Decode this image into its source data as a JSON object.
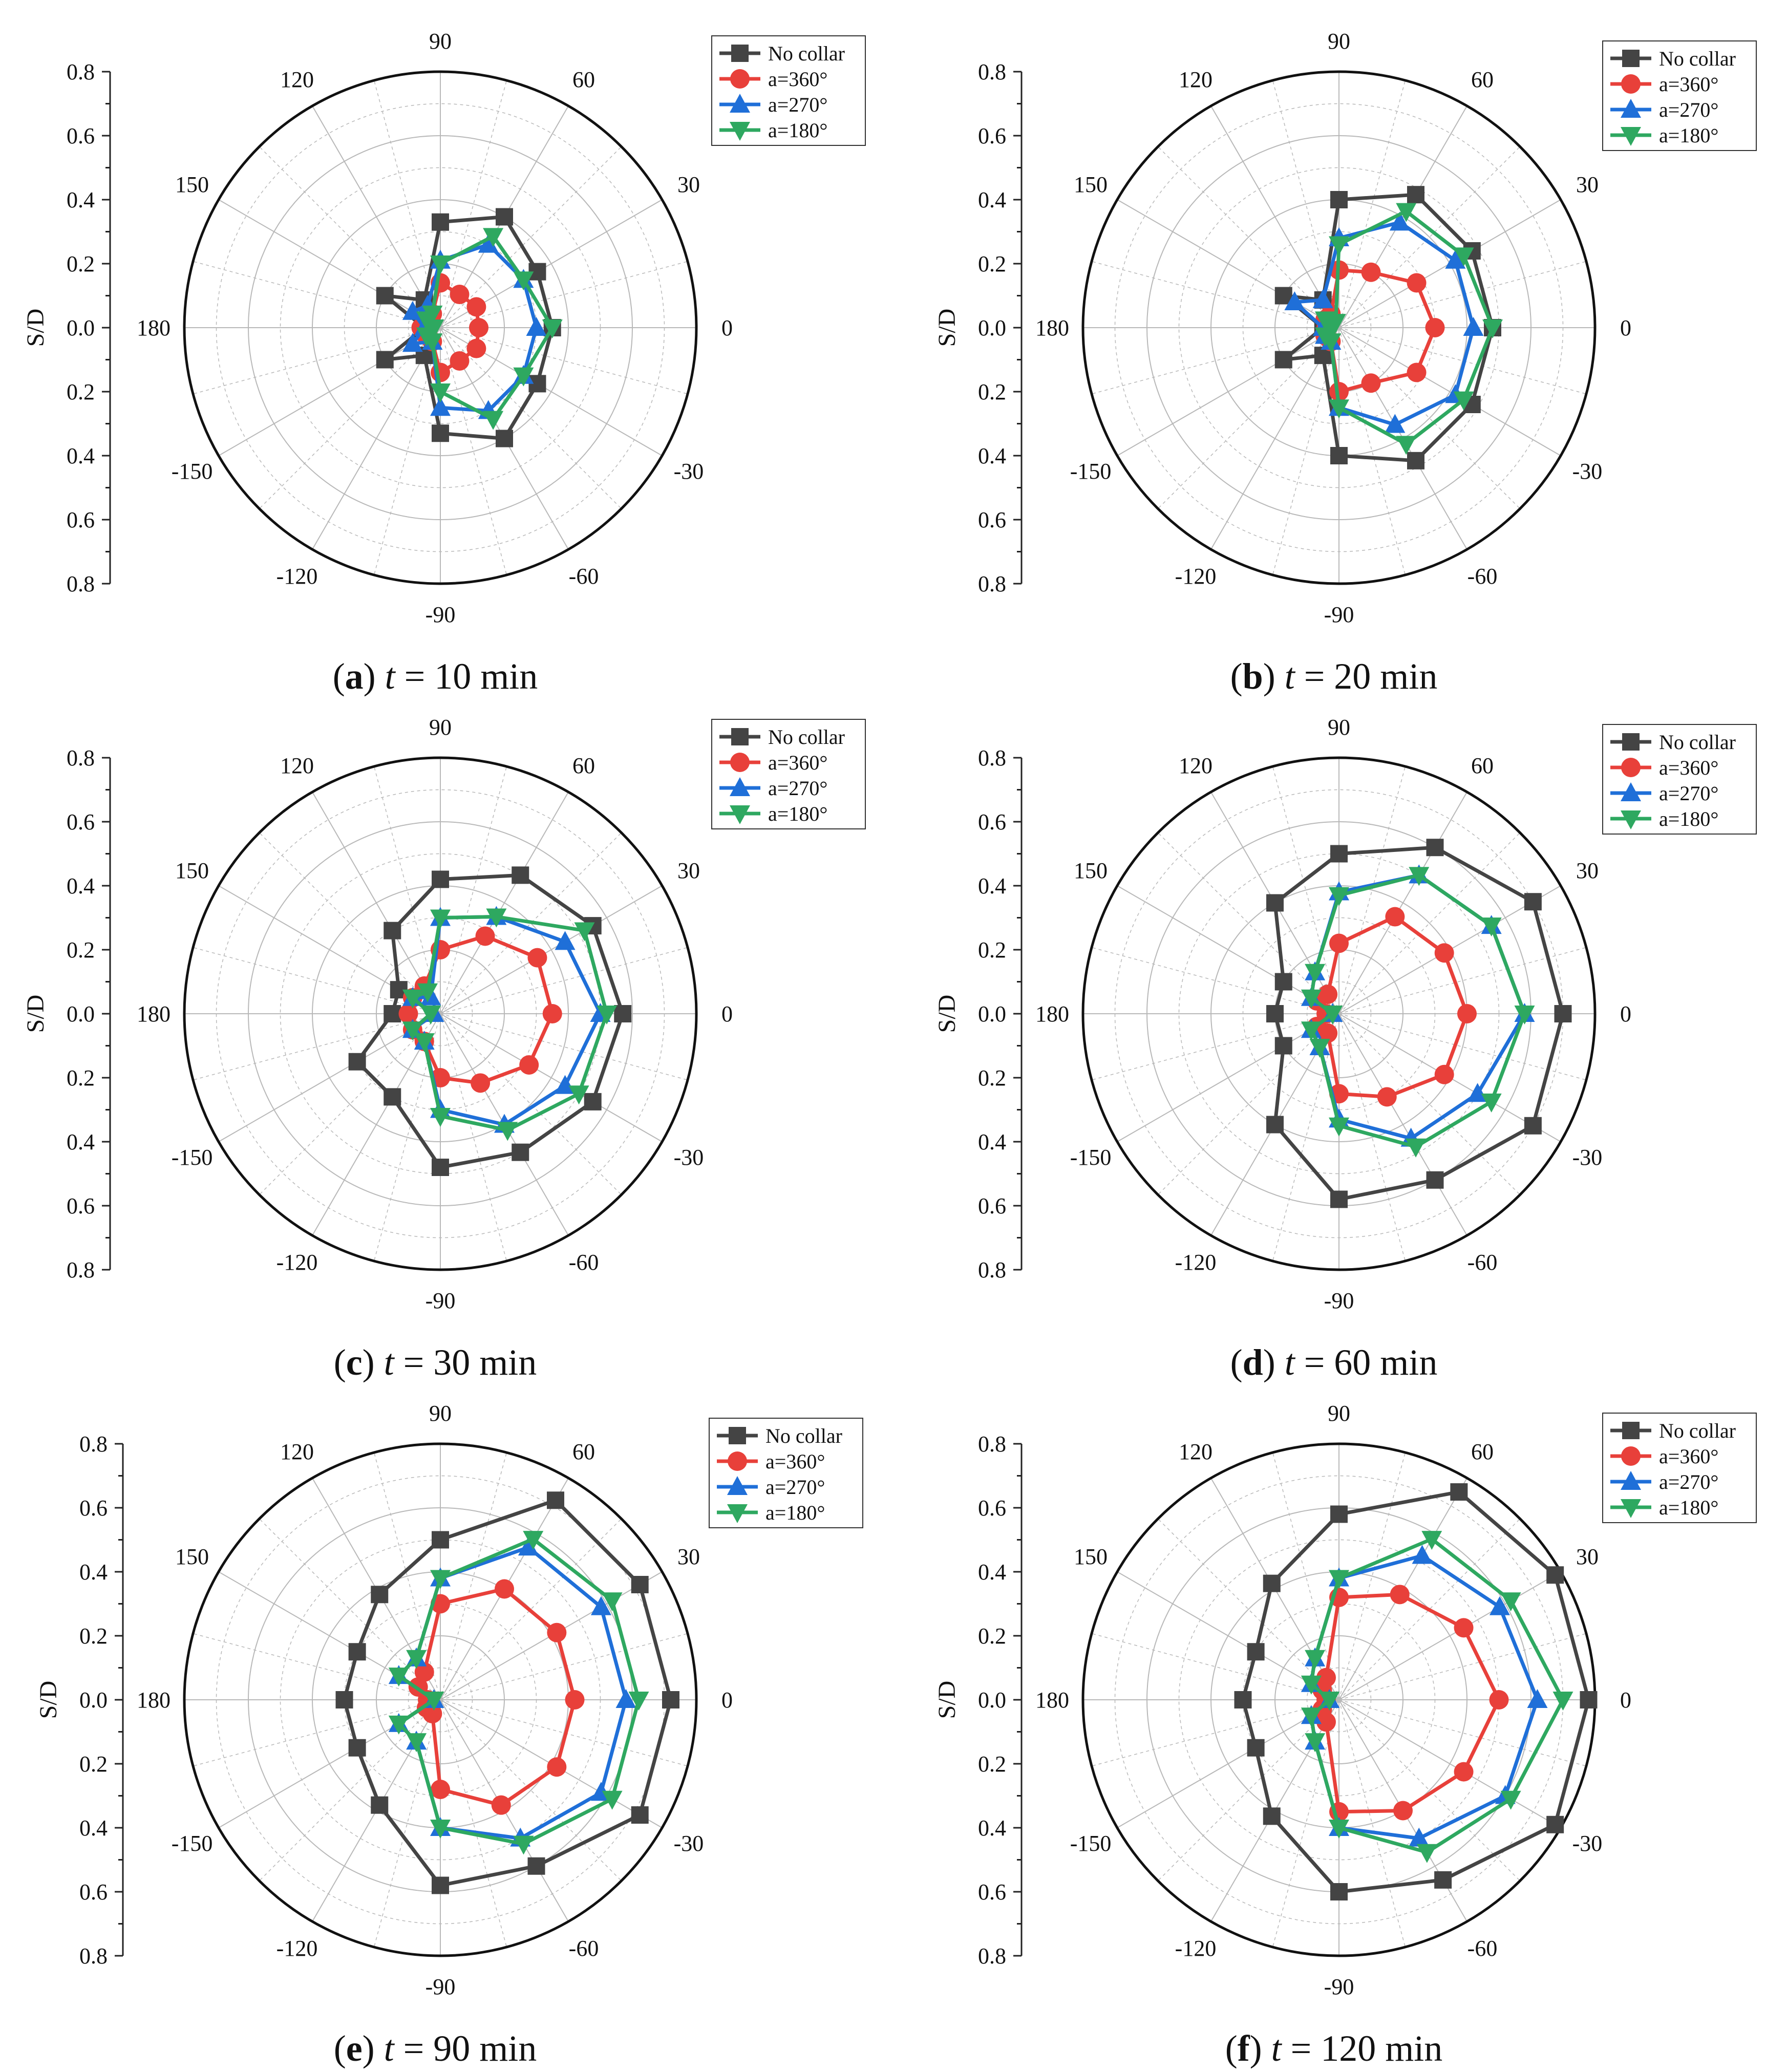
{
  "figure": {
    "y_axis_title": "S/D",
    "y_tick_labels": [
      "0.8",
      "0.6",
      "0.4",
      "0.2",
      "0.0",
      "0.2",
      "0.4",
      "0.6",
      "0.8"
    ],
    "angle_labels": [
      "0",
      "30",
      "60",
      "90",
      "120",
      "150",
      "180",
      "-150",
      "-120",
      "-90",
      "-60",
      "-30"
    ],
    "colors": {
      "no_collar": "#444444",
      "a360": "#e8403a",
      "a270": "#1f6fd8",
      "a180": "#2ea860",
      "grid": "#b8b8b8"
    },
    "markers": {
      "no_collar": "square",
      "a360": "circle",
      "a270": "triangle-up",
      "a180": "triangle-down"
    }
  },
  "chart_data": [
    {
      "type": "radar",
      "panel_label": "(a)",
      "caption_var": "t",
      "caption_value": "= 10 min",
      "angles_deg": [
        0,
        30,
        60,
        90,
        120,
        150,
        180,
        -150,
        -120,
        -90,
        -60,
        -30
      ],
      "rlim": [
        0,
        0.8
      ],
      "ylabel": "S/D",
      "legend": [
        "No collar",
        "a=360°",
        "a=270°",
        "a=180°"
      ],
      "series": [
        {
          "name": "No collar",
          "values": [
            0.35,
            0.35,
            0.4,
            0.33,
            0.1,
            0.2,
            0.05,
            0.2,
            0.1,
            0.33,
            0.4,
            0.35
          ]
        },
        {
          "name": "a=360°",
          "values": [
            0.12,
            0.13,
            0.12,
            0.14,
            0.05,
            0.05,
            0.06,
            0.05,
            0.05,
            0.14,
            0.12,
            0.13
          ]
        },
        {
          "name": "a=270°",
          "values": [
            0.3,
            0.3,
            0.3,
            0.21,
            0.08,
            0.1,
            0.05,
            0.1,
            0.05,
            0.25,
            0.3,
            0.3
          ]
        },
        {
          "name": "a=180°",
          "values": [
            0.35,
            0.3,
            0.33,
            0.2,
            0.05,
            0.05,
            0.02,
            0.05,
            0.05,
            0.2,
            0.33,
            0.3
          ]
        }
      ]
    },
    {
      "type": "radar",
      "panel_label": "(b)",
      "caption_var": "t",
      "caption_value": "= 20 min",
      "angles_deg": [
        0,
        30,
        60,
        90,
        120,
        150,
        180,
        -150,
        -120,
        -90,
        -60,
        -30
      ],
      "rlim": [
        0,
        0.8
      ],
      "ylabel": "S/D",
      "legend": [
        "No collar",
        "a=360°",
        "a=270°",
        "a=180°"
      ],
      "series": [
        {
          "name": "No collar",
          "values": [
            0.48,
            0.48,
            0.48,
            0.4,
            0.1,
            0.2,
            0.05,
            0.2,
            0.1,
            0.4,
            0.48,
            0.48
          ]
        },
        {
          "name": "a=360°",
          "values": [
            0.3,
            0.28,
            0.2,
            0.18,
            0.05,
            0.05,
            0.04,
            0.05,
            0.05,
            0.2,
            0.2,
            0.28
          ]
        },
        {
          "name": "a=270°",
          "values": [
            0.42,
            0.42,
            0.38,
            0.28,
            0.1,
            0.16,
            0.05,
            0.05,
            0.05,
            0.25,
            0.35,
            0.42
          ]
        },
        {
          "name": "a=180°",
          "values": [
            0.48,
            0.45,
            0.42,
            0.26,
            0.02,
            0.05,
            0.02,
            0.05,
            0.05,
            0.25,
            0.42,
            0.45
          ]
        }
      ]
    },
    {
      "type": "radar",
      "panel_label": "(c)",
      "caption_var": "t",
      "caption_value": "= 30 min",
      "angles_deg": [
        0,
        30,
        60,
        90,
        120,
        150,
        180,
        -150,
        -120,
        -90,
        -60,
        -30
      ],
      "rlim": [
        0,
        0.8
      ],
      "ylabel": "S/D",
      "legend": [
        "No collar",
        "a=360°",
        "a=270°",
        "a=180°"
      ],
      "series": [
        {
          "name": "No collar",
          "values": [
            0.57,
            0.55,
            0.5,
            0.42,
            0.3,
            0.15,
            0.15,
            0.3,
            0.3,
            0.48,
            0.5,
            0.55
          ]
        },
        {
          "name": "a=360°",
          "values": [
            0.35,
            0.35,
            0.28,
            0.2,
            0.1,
            0.1,
            0.1,
            0.1,
            0.1,
            0.2,
            0.25,
            0.32
          ]
        },
        {
          "name": "a=270°",
          "values": [
            0.5,
            0.45,
            0.35,
            0.3,
            0.06,
            0.1,
            0.02,
            0.1,
            0.1,
            0.3,
            0.4,
            0.45
          ]
        },
        {
          "name": "a=180°",
          "values": [
            0.52,
            0.52,
            0.35,
            0.3,
            0.08,
            0.1,
            0.03,
            0.1,
            0.1,
            0.32,
            0.42,
            0.5
          ]
        }
      ]
    },
    {
      "type": "radar",
      "panel_label": "(d)",
      "caption_var": "t",
      "caption_value": "= 60 min",
      "angles_deg": [
        0,
        30,
        60,
        90,
        120,
        150,
        180,
        -150,
        -120,
        -90,
        -60,
        -30
      ],
      "rlim": [
        0,
        0.8
      ],
      "ylabel": "S/D",
      "legend": [
        "No collar",
        "a=360°",
        "a=270°",
        "a=180°"
      ],
      "series": [
        {
          "name": "No collar",
          "values": [
            0.7,
            0.7,
            0.6,
            0.5,
            0.4,
            0.2,
            0.2,
            0.2,
            0.4,
            0.58,
            0.6,
            0.7
          ]
        },
        {
          "name": "a=360°",
          "values": [
            0.4,
            0.38,
            0.35,
            0.22,
            0.07,
            0.08,
            0.04,
            0.08,
            0.07,
            0.25,
            0.3,
            0.38
          ]
        },
        {
          "name": "a=270°",
          "values": [
            0.58,
            0.55,
            0.5,
            0.38,
            0.15,
            0.1,
            0.02,
            0.1,
            0.12,
            0.33,
            0.45,
            0.5
          ]
        },
        {
          "name": "a=180°",
          "values": [
            0.58,
            0.55,
            0.5,
            0.37,
            0.15,
            0.1,
            0.02,
            0.1,
            0.12,
            0.35,
            0.48,
            0.55
          ]
        }
      ]
    },
    {
      "type": "radar",
      "panel_label": "(e)",
      "caption_var": "t",
      "caption_value": "= 90 min",
      "angles_deg": [
        0,
        30,
        60,
        90,
        120,
        150,
        180,
        -150,
        -120,
        -90,
        -60,
        -30
      ],
      "rlim": [
        0,
        0.8
      ],
      "ylabel": "S/D",
      "legend": [
        "No collar",
        "a=360°",
        "a=270°",
        "a=180°"
      ],
      "series": [
        {
          "name": "No collar",
          "values": [
            0.72,
            0.72,
            0.72,
            0.5,
            0.38,
            0.3,
            0.3,
            0.3,
            0.38,
            0.58,
            0.6,
            0.72
          ]
        },
        {
          "name": "a=360°",
          "values": [
            0.42,
            0.42,
            0.4,
            0.3,
            0.1,
            0.08,
            0.04,
            0.05,
            0.05,
            0.28,
            0.38,
            0.42
          ]
        },
        {
          "name": "a=270°",
          "values": [
            0.58,
            0.58,
            0.55,
            0.38,
            0.15,
            0.15,
            0.02,
            0.15,
            0.15,
            0.4,
            0.5,
            0.58
          ]
        },
        {
          "name": "a=180°",
          "values": [
            0.62,
            0.62,
            0.58,
            0.38,
            0.15,
            0.15,
            0.02,
            0.15,
            0.15,
            0.4,
            0.52,
            0.62
          ]
        }
      ]
    },
    {
      "type": "radar",
      "panel_label": "(f)",
      "caption_var": "t",
      "caption_value": "= 120 min",
      "angles_deg": [
        0,
        30,
        60,
        90,
        120,
        150,
        180,
        -150,
        -120,
        -90,
        -60,
        -30
      ],
      "rlim": [
        0,
        0.8
      ],
      "ylabel": "S/D",
      "legend": [
        "No collar",
        "a=360°",
        "a=270°",
        "a=180°"
      ],
      "series": [
        {
          "name": "No collar",
          "values": [
            0.78,
            0.78,
            0.75,
            0.58,
            0.42,
            0.3,
            0.3,
            0.3,
            0.42,
            0.6,
            0.65,
            0.78
          ]
        },
        {
          "name": "a=360°",
          "values": [
            0.5,
            0.45,
            0.38,
            0.32,
            0.08,
            0.06,
            0.04,
            0.06,
            0.08,
            0.35,
            0.4,
            0.45
          ]
        },
        {
          "name": "a=270°",
          "values": [
            0.62,
            0.58,
            0.52,
            0.38,
            0.15,
            0.1,
            0.03,
            0.1,
            0.15,
            0.4,
            0.5,
            0.6
          ]
        },
        {
          "name": "a=180°",
          "values": [
            0.7,
            0.62,
            0.58,
            0.38,
            0.15,
            0.1,
            0.03,
            0.1,
            0.15,
            0.4,
            0.55,
            0.62
          ]
        }
      ]
    }
  ]
}
